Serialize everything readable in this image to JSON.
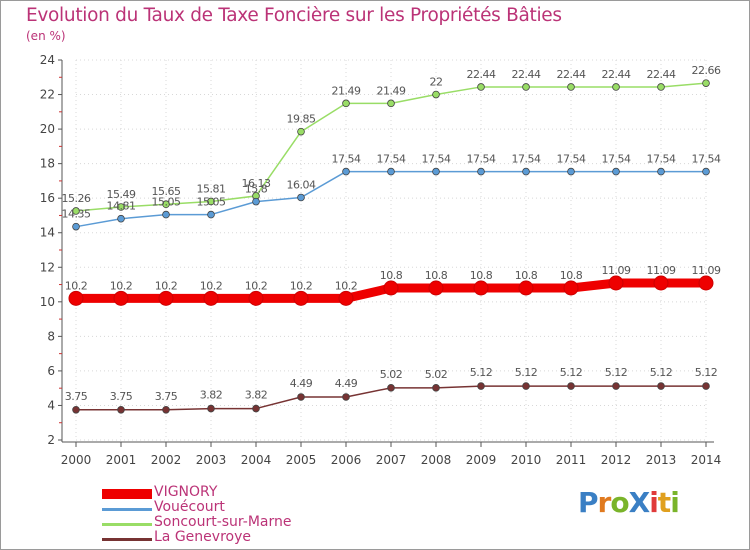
{
  "title": "Evolution du Taux de Taxe Foncière sur les Propriétés Bâties",
  "unit": "(en %)",
  "logo": "ProXiti",
  "logo_letters": [
    {
      "ch": "P",
      "color": "#3a7fc4"
    },
    {
      "ch": "r",
      "color": "#e07a1f"
    },
    {
      "ch": "o",
      "color": "#7ab42a"
    },
    {
      "ch": "X",
      "color": "#3a7fc4"
    },
    {
      "ch": "i",
      "color": "#e03a3a"
    },
    {
      "ch": "t",
      "color": "#e0a01f"
    },
    {
      "ch": "i",
      "color": "#7ab42a"
    }
  ],
  "chart_data": {
    "type": "line",
    "title": "Evolution du Taux de Taxe Foncière sur les Propriétés Bâties",
    "ylabel": "(en %)",
    "xlabel": "",
    "ylim": [
      2,
      24
    ],
    "yticks": [
      2,
      4,
      6,
      8,
      10,
      12,
      14,
      16,
      18,
      20,
      22,
      24
    ],
    "categories": [
      "2000",
      "2001",
      "2002",
      "2003",
      "2004",
      "2005",
      "2006",
      "2007",
      "2008",
      "2009",
      "2010",
      "2011",
      "2012",
      "2013",
      "2014"
    ],
    "series": [
      {
        "name": "VIGNORY",
        "color": "#ee0000",
        "bold": true,
        "values": [
          10.2,
          10.2,
          10.2,
          10.2,
          10.2,
          10.2,
          10.2,
          10.8,
          10.8,
          10.8,
          10.8,
          10.8,
          11.09,
          11.09,
          11.09
        ],
        "labels": [
          "10.2",
          "10.2",
          "10.2",
          "10.2",
          "10.2",
          "10.2",
          "10.2",
          "10.8",
          "10.8",
          "10.8",
          "10.8",
          "10.8",
          "11.09",
          "11.09",
          "11.09"
        ]
      },
      {
        "name": "Vouécourt",
        "color": "#5b9bd5",
        "bold": false,
        "values": [
          14.35,
          14.81,
          15.05,
          15.05,
          15.8,
          16.04,
          17.54,
          17.54,
          17.54,
          17.54,
          17.54,
          17.54,
          17.54,
          17.54,
          17.54
        ],
        "labels": [
          "14.35",
          "14.81",
          "15.05",
          "15.05",
          "15.8",
          "16.04",
          "17.54",
          "17.54",
          "17.54",
          "17.54",
          "17.54",
          "17.54",
          "17.54",
          "17.54",
          "17.54"
        ]
      },
      {
        "name": "Soncourt-sur-Marne",
        "color": "#99dd66",
        "bold": false,
        "values": [
          15.26,
          15.49,
          15.65,
          15.81,
          16.13,
          19.85,
          21.49,
          21.49,
          22,
          22.44,
          22.44,
          22.44,
          22.44,
          22.44,
          22.66
        ],
        "labels": [
          "15.26",
          "15.49",
          "15.65",
          "15.81",
          "16.13",
          "19.85",
          "21.49",
          "21.49",
          "22",
          "22.44",
          "22.44",
          "22.44",
          "22.44",
          "22.44",
          "22.66"
        ]
      },
      {
        "name": "La Genevroye",
        "color": "#773333",
        "bold": false,
        "values": [
          3.75,
          3.75,
          3.75,
          3.82,
          3.82,
          4.49,
          4.49,
          5.02,
          5.02,
          5.12,
          5.12,
          5.12,
          5.12,
          5.12,
          5.12
        ],
        "labels": [
          "3.75",
          "3.75",
          "3.75",
          "3.82",
          "3.82",
          "4.49",
          "4.49",
          "5.02",
          "5.02",
          "5.12",
          "5.12",
          "5.12",
          "5.12",
          "5.12",
          "5.12"
        ]
      }
    ],
    "legend_position": "bottom-left"
  }
}
